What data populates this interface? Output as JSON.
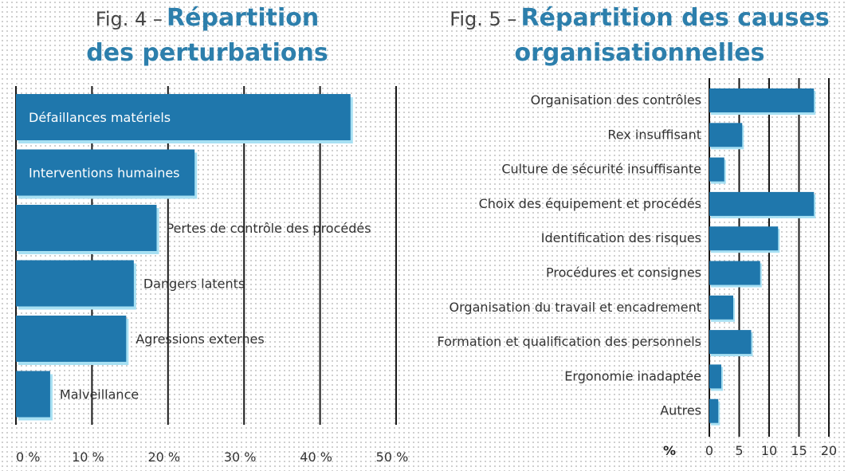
{
  "chart_data": [
    {
      "type": "bar",
      "orientation": "horizontal",
      "title_prefix": "Fig. 4 –",
      "title_line1": "Répartition",
      "title_line2": "des perturbations",
      "categories": [
        "Défaillances matériels",
        "Interventions humaines",
        "Pertes de contrôle des procédés",
        "Dangers latents",
        "Agressions externes",
        "Malveillance"
      ],
      "values": [
        44,
        23.5,
        18.5,
        15.5,
        14.5,
        4.5
      ],
      "label_inside": [
        true,
        true,
        false,
        false,
        false,
        false
      ],
      "xlim": [
        0,
        50
      ],
      "xticks": [
        "0 %",
        "10 %",
        "20 %",
        "30 %",
        "40 %",
        "50 %"
      ],
      "grid": true,
      "bar_color": "#1f77ac",
      "glow_color": "#a7e0f3"
    },
    {
      "type": "bar",
      "orientation": "horizontal",
      "title_prefix": "Fig. 5 –",
      "title_line1": "Répartition des causes",
      "title_line2": "organisationnelles",
      "categories": [
        "Organisation des contrôles",
        "Rex insuffisant",
        "Culture de sécurité insuffisante",
        "Choix des équipement et procédés",
        "Identification des risques",
        "Procédures et consignes",
        "Organisation du travail et encadrement",
        "Formation et qualification des personnels",
        "Ergonomie inadaptée",
        "Autres"
      ],
      "values": [
        17.5,
        5.5,
        2.5,
        17.5,
        11.5,
        8.5,
        4,
        7,
        2,
        1.5
      ],
      "xlim": [
        0,
        20
      ],
      "xticks": [
        "0",
        "5",
        "10",
        "15",
        "20"
      ],
      "unit_label": "%",
      "grid": true,
      "bar_color": "#1f77ac",
      "glow_color": "#a7e0f3"
    }
  ]
}
